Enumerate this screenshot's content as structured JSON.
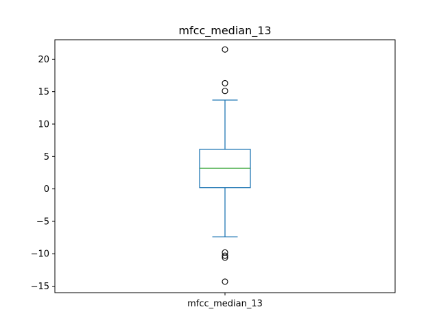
{
  "chart_data": {
    "type": "box",
    "title": "mfcc_median_13",
    "categories": [
      "mfcc_median_13"
    ],
    "ylim": [
      -16,
      23
    ],
    "yticks": [
      -15,
      -10,
      -5,
      0,
      5,
      10,
      15,
      20
    ],
    "ytick_labels": [
      "−15",
      "−10",
      "−5",
      "0",
      "5",
      "10",
      "15",
      "20"
    ],
    "grid": false,
    "box": {
      "whisker_low": -7.4,
      "q1": 0.2,
      "median": 3.2,
      "q3": 6.1,
      "whisker_high": 13.7,
      "outliers": [
        21.5,
        16.3,
        15.1,
        -9.8,
        -10.3,
        -10.6,
        -14.3
      ]
    },
    "colors": {
      "box": "#1f77b4",
      "median": "#2ca02c",
      "outlier_edge": "#000000"
    }
  }
}
